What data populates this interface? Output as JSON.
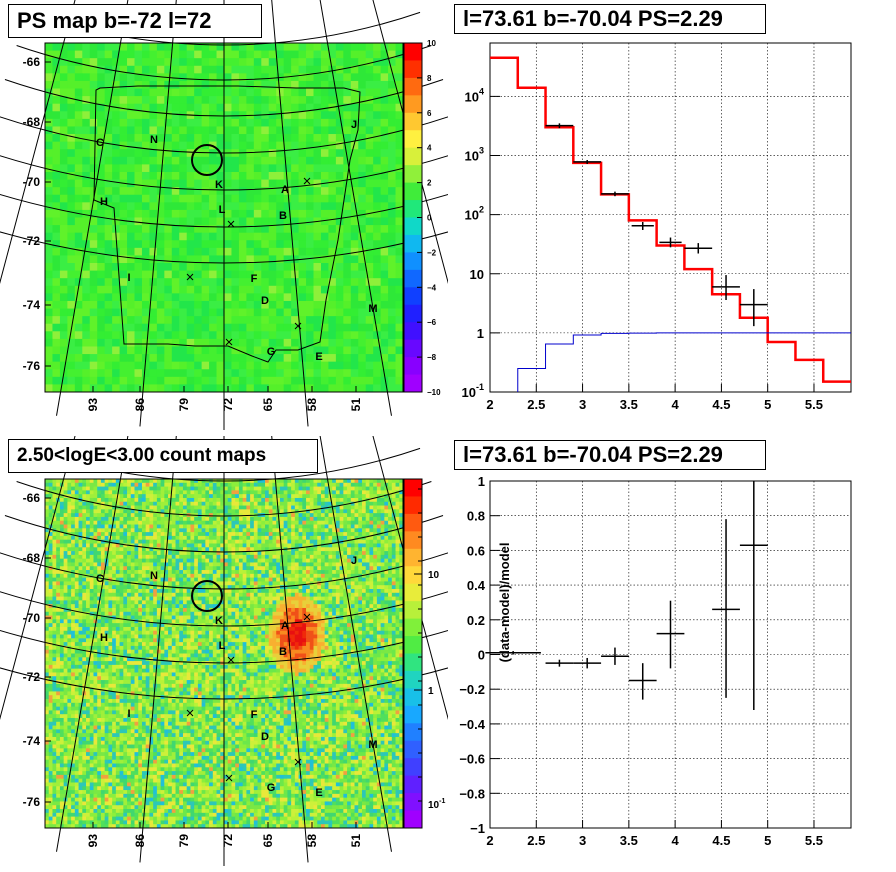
{
  "panels": {
    "ps_map": {
      "title": "PS map b=-72 l=72",
      "colorbar_ticks": [
        "10",
        "8",
        "6",
        "4",
        "2",
        "0",
        "−2",
        "−4",
        "−6",
        "−8",
        "−10"
      ],
      "b_ticks": [
        "-66",
        "-68",
        "-70",
        "-72",
        "-74",
        "-76"
      ],
      "l_ticks": [
        "93",
        "86",
        "79",
        "72",
        "65",
        "58",
        "51"
      ]
    },
    "spectrum": {
      "title": "l=73.61 b=-70.04 PS=2.29"
    },
    "count_map": {
      "title": "2.50<logE<3.00 count maps",
      "colorbar_ticks": [
        "10",
        "1"
      ],
      "colorbar_tick_low": "10",
      "colorbar_tick_low_exp": "-1",
      "b_ticks": [
        "-66",
        "-68",
        "-70",
        "-72",
        "-74",
        "-76"
      ],
      "l_ticks": [
        "93",
        "86",
        "79",
        "72",
        "65",
        "58",
        "51"
      ]
    },
    "residual": {
      "title": "l=73.61 b=-70.04 PS=2.29"
    }
  },
  "map_labels": [
    "C",
    "N",
    "K",
    "A",
    "H",
    "L",
    "B",
    "I",
    "F",
    "D",
    "M",
    "G",
    "E",
    "J"
  ],
  "chart_data": [
    {
      "type": "heatmap",
      "title": "PS map b=-72 l=72",
      "xlabel": "",
      "ylabel": "",
      "x_ticks": [
        93,
        86,
        79,
        72,
        65,
        58,
        51
      ],
      "y_ticks": [
        -66,
        -68,
        -70,
        -72,
        -74,
        -76
      ],
      "colorbar_range": [
        -10,
        10
      ],
      "note_labels": [
        "C",
        "N",
        "K",
        "A",
        "H",
        "L",
        "B",
        "I",
        "F",
        "D",
        "M",
        "G",
        "E",
        "J"
      ]
    },
    {
      "type": "line",
      "title": "l=73.61 b=-70.04 PS=2.29",
      "xlim": [
        2,
        5.9
      ],
      "ylim": [
        0.1,
        80000
      ],
      "y_scale": "log",
      "x_ticks": [
        2,
        2.5,
        3,
        3.5,
        4,
        4.5,
        5,
        5.5
      ],
      "y_tick_labels": [
        "10^4",
        "10^3",
        "10^2",
        "10",
        "1",
        "10^-1"
      ],
      "series": [
        {
          "name": "",
          "color": "#ff0000",
          "step_edges": [
            2.0,
            2.3,
            2.6,
            2.9,
            3.2,
            3.5,
            3.8,
            4.1,
            4.4,
            4.7,
            5.0,
            5.3,
            5.6,
            5.9
          ],
          "values": [
            45000,
            14000,
            3000,
            750,
            220,
            80,
            30,
            12,
            4.5,
            1.8,
            0.7,
            0.35,
            0.15
          ]
        },
        {
          "name": "",
          "color": "#0000cc",
          "step_edges": [
            2.3,
            2.6,
            2.9,
            3.2,
            3.5,
            3.8,
            4.1,
            4.4,
            4.7,
            5.0,
            5.9
          ],
          "values": [
            0.25,
            0.65,
            0.92,
            0.98,
            0.99,
            1,
            1,
            1,
            1,
            1
          ]
        },
        {
          "name": "",
          "color": "#000000",
          "points": [
            {
              "x": 2.75,
              "y": 3200,
              "xerr": 0.15,
              "ylo": 2900,
              "yhi": 3500
            },
            {
              "x": 3.05,
              "y": 780,
              "xerr": 0.15,
              "ylo": 720,
              "yhi": 840
            },
            {
              "x": 3.35,
              "y": 225,
              "xerr": 0.15,
              "ylo": 205,
              "yhi": 245
            },
            {
              "x": 3.65,
              "y": 65,
              "xerr": 0.12,
              "ylo": 55,
              "yhi": 75
            },
            {
              "x": 3.95,
              "y": 34,
              "xerr": 0.12,
              "ylo": 28,
              "yhi": 41
            },
            {
              "x": 4.25,
              "y": 27,
              "xerr": 0.15,
              "ylo": 22,
              "yhi": 33
            },
            {
              "x": 4.55,
              "y": 6,
              "xerr": 0.15,
              "ylo": 3.6,
              "yhi": 9.5
            },
            {
              "x": 4.85,
              "y": 3,
              "xerr": 0.15,
              "ylo": 1.3,
              "yhi": 5.5
            }
          ]
        }
      ]
    },
    {
      "type": "heatmap",
      "title": "2.50<logE<3.00 count maps",
      "x_ticks": [
        93,
        86,
        79,
        72,
        65,
        58,
        51
      ],
      "y_ticks": [
        -66,
        -68,
        -70,
        -72,
        -74,
        -76
      ],
      "colorbar_scale": "log",
      "colorbar_labels": [
        "10",
        "1",
        "10^-1"
      ],
      "note_labels": [
        "C",
        "N",
        "K",
        "A",
        "H",
        "L",
        "B",
        "I",
        "F",
        "D",
        "M",
        "G",
        "E",
        "J"
      ]
    },
    {
      "type": "scatter",
      "title": "l=73.61 b=-70.04 PS=2.29",
      "ylabel": "(data-model)/model",
      "xlim": [
        2,
        5.9
      ],
      "ylim": [
        -1,
        1
      ],
      "x_ticks": [
        2,
        2.5,
        3,
        3.5,
        4,
        4.5,
        5,
        5.5
      ],
      "y_ticks": [
        1,
        0.8,
        0.6,
        0.4,
        0.2,
        0,
        -0.2,
        -0.4,
        -0.6,
        -0.8,
        -1
      ],
      "points": [
        {
          "x": 2.25,
          "y": 0.01,
          "xerr": 0.3,
          "ylo": 0.0,
          "yhi": 0.02
        },
        {
          "x": 2.75,
          "y": -0.05,
          "xerr": 0.15,
          "ylo": -0.07,
          "yhi": -0.03
        },
        {
          "x": 3.05,
          "y": -0.05,
          "xerr": 0.15,
          "ylo": -0.08,
          "yhi": -0.02
        },
        {
          "x": 3.35,
          "y": -0.01,
          "xerr": 0.15,
          "ylo": -0.06,
          "yhi": 0.04
        },
        {
          "x": 3.65,
          "y": -0.15,
          "xerr": 0.15,
          "ylo": -0.26,
          "yhi": -0.05
        },
        {
          "x": 3.95,
          "y": 0.12,
          "xerr": 0.15,
          "ylo": -0.08,
          "yhi": 0.31
        },
        {
          "x": 4.55,
          "y": 0.26,
          "xerr": 0.15,
          "ylo": -0.25,
          "yhi": 0.78
        },
        {
          "x": 4.85,
          "y": 0.63,
          "xerr": 0.15,
          "ylo": -0.32,
          "yhi": 1.0
        }
      ]
    }
  ]
}
